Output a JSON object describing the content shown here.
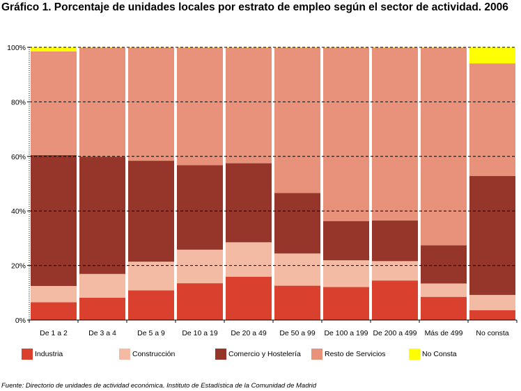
{
  "title": "Gráfico 1. Porcentaje de unidades locales por estrato de empleo según el sector de actividad. 2006",
  "source": "Fuente: Directorio de unidades de actividad económica. Instituto de Estadística de la Comunidad de Madrid",
  "colors": {
    "industria": "#d9412e",
    "construccion": "#f3bba3",
    "comercio": "#96352a",
    "resto": "#e8917b",
    "noconsta": "#ffff00",
    "gap": "#ffffff"
  },
  "chart_data": {
    "type": "bar",
    "stacked": true,
    "categories": [
      "De 1 a 2",
      "De 3 a 4",
      "De 5 a 9",
      "De 10 a 19",
      "De 20 a 49",
      "De 50 a 99",
      "De 100 a 199",
      "De 200 a 499",
      "Más de 499",
      "No consta"
    ],
    "series": [
      {
        "name": "Industria",
        "color": "#d9412e",
        "values": [
          6.5,
          8.2,
          10.9,
          13.5,
          15.9,
          12.6,
          12.1,
          14.5,
          8.5,
          3.6
        ]
      },
      {
        "name": "Construcción",
        "color": "#f3bba3",
        "values": [
          6.0,
          8.7,
          10.5,
          12.3,
          12.6,
          11.8,
          9.8,
          7.1,
          4.9,
          5.6
        ]
      },
      {
        "name": "Comercio y Hostelería",
        "color": "#96352a",
        "values": [
          48.0,
          43.0,
          37.0,
          31.0,
          29.0,
          22.2,
          14.4,
          14.9,
          14.0,
          43.6
        ]
      },
      {
        "name": "Resto de Servicios",
        "color": "#e8917b",
        "values": [
          38.0,
          40.0,
          41.5,
          43.1,
          42.4,
          53.3,
          63.6,
          63.4,
          72.5,
          41.3
        ]
      },
      {
        "name": "No Consta",
        "color": "#ffff00",
        "values": [
          1.5,
          0.1,
          0.1,
          0.1,
          0.1,
          0.1,
          0.1,
          0.1,
          0.1,
          5.9
        ]
      }
    ],
    "yticks": [
      "0%",
      "20%",
      "40%",
      "60%",
      "80%",
      "100%"
    ],
    "ylim": [
      0,
      100
    ],
    "grid": true,
    "legend_position": "bottom"
  }
}
